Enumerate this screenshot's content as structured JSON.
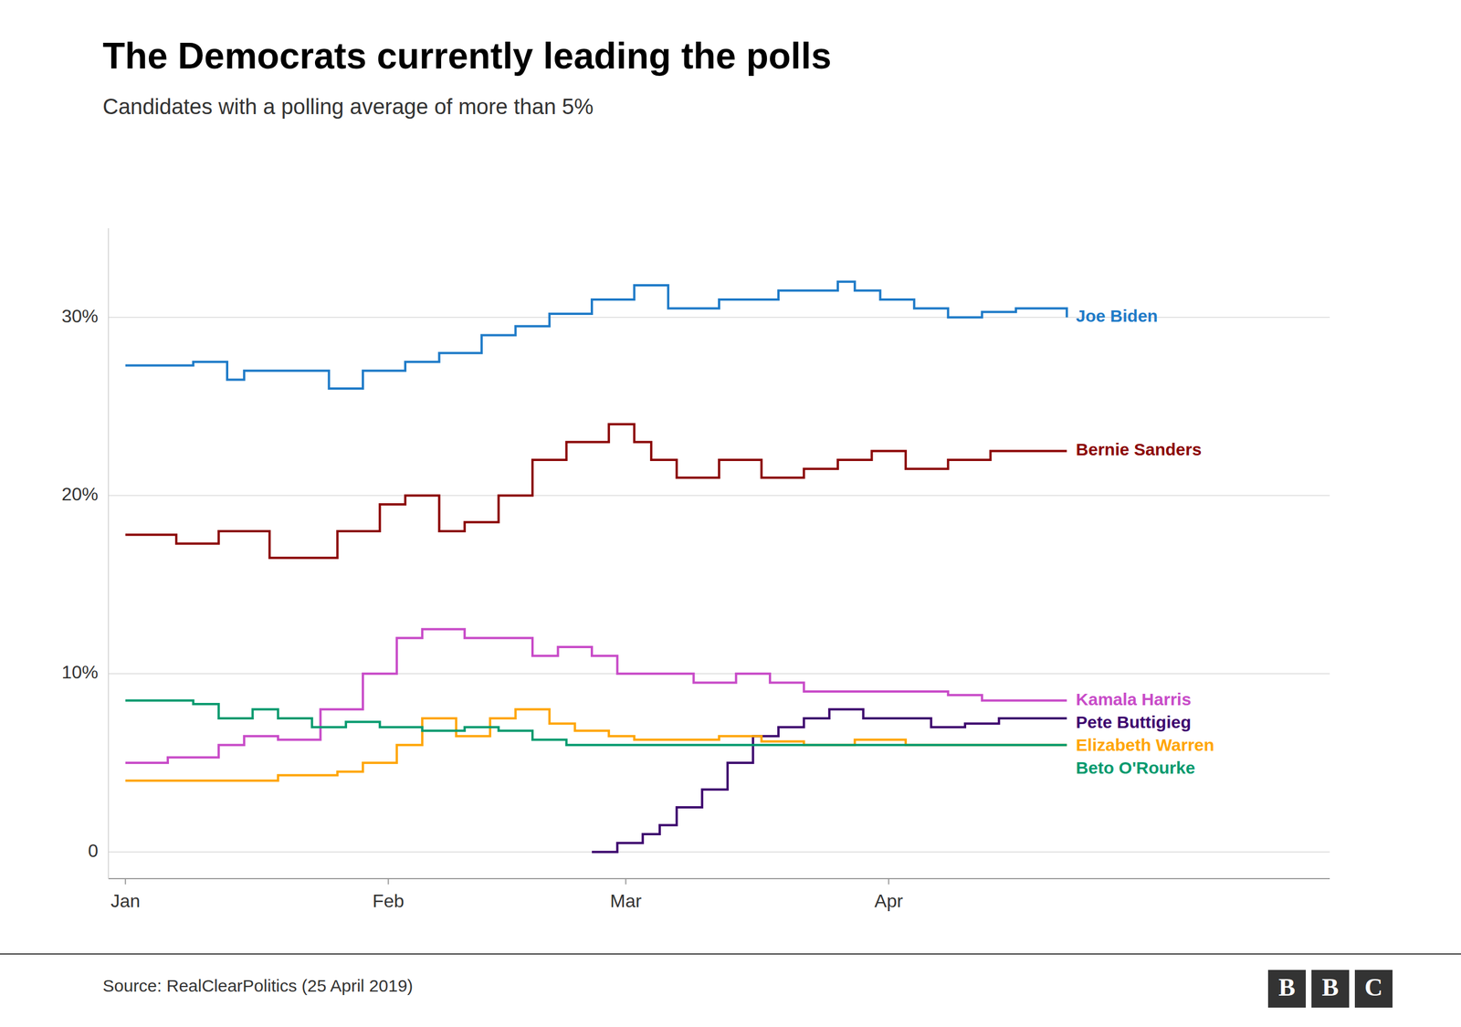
{
  "chart_data": {
    "type": "step",
    "title": "The Democrats currently leading the polls",
    "subtitle": "Candidates with a polling average of more than 5%",
    "source": "Source: RealClearPolitics (25 April 2019)",
    "logo": "BBC",
    "series": [
      {
        "name": "Joe Biden",
        "color": "#1f7bc8",
        "x": [
          0,
          8,
          12,
          14,
          19,
          24,
          28,
          33,
          37,
          42,
          46,
          50,
          55,
          60,
          64,
          70,
          77,
          84,
          86,
          89,
          93,
          97,
          101,
          105,
          111
        ],
        "values": [
          27.3,
          27.5,
          26.5,
          27.0,
          27.0,
          26.0,
          27.0,
          27.5,
          28.0,
          29.0,
          29.5,
          30.2,
          31.0,
          31.8,
          30.5,
          31.0,
          31.5,
          32.0,
          31.5,
          31.0,
          30.5,
          30.0,
          30.3,
          30.5,
          30.0
        ]
      },
      {
        "name": "Bernie Sanders",
        "color": "#8b0000",
        "x": [
          0,
          6,
          11,
          17,
          25,
          30,
          33,
          37,
          40,
          44,
          48,
          52,
          57,
          60,
          62,
          65,
          70,
          75,
          80,
          84,
          88,
          92,
          97,
          102,
          111
        ],
        "values": [
          17.8,
          17.3,
          18.0,
          16.5,
          18.0,
          19.5,
          20.0,
          18.0,
          18.5,
          20.0,
          22.0,
          23.0,
          24.0,
          23.0,
          22.0,
          21.0,
          22.0,
          21.0,
          21.5,
          22.0,
          22.5,
          21.5,
          22.0,
          22.5,
          22.5
        ]
      },
      {
        "name": "Kamala Harris",
        "color": "#c84bc8",
        "x": [
          0,
          5,
          11,
          14,
          18,
          23,
          28,
          32,
          35,
          40,
          44,
          48,
          51,
          55,
          58,
          62,
          67,
          72,
          76,
          80,
          84,
          88,
          93,
          97,
          101,
          105,
          111
        ],
        "values": [
          5.0,
          5.3,
          6.0,
          6.5,
          6.3,
          8.0,
          10.0,
          12.0,
          12.5,
          12.0,
          12.0,
          11.0,
          11.5,
          11.0,
          10.0,
          10.0,
          9.5,
          10.0,
          9.5,
          9.0,
          9.0,
          9.0,
          9.0,
          8.8,
          8.5,
          8.5,
          8.5
        ]
      },
      {
        "name": "Pete Buttigieg",
        "color": "#3d006e",
        "x": [
          55,
          58,
          61,
          63,
          65,
          68,
          71,
          74,
          77,
          80,
          83,
          87,
          91,
          95,
          99,
          103,
          107,
          111
        ],
        "values": [
          0.0,
          0.5,
          1.0,
          1.5,
          2.5,
          3.5,
          5.0,
          6.5,
          7.0,
          7.5,
          8.0,
          7.5,
          7.5,
          7.0,
          7.2,
          7.5,
          7.5,
          7.5
        ]
      },
      {
        "name": "Elizabeth Warren",
        "color": "#ffa500",
        "x": [
          0,
          18,
          25,
          28,
          32,
          35,
          39,
          43,
          46,
          50,
          53,
          57,
          60,
          65,
          70,
          75,
          80,
          86,
          92,
          97,
          102,
          111
        ],
        "values": [
          4.0,
          4.3,
          4.5,
          5.0,
          6.0,
          7.5,
          6.5,
          7.5,
          8.0,
          7.2,
          6.8,
          6.5,
          6.3,
          6.3,
          6.5,
          6.2,
          6.0,
          6.3,
          6.0,
          6.0,
          6.0,
          6.0
        ]
      },
      {
        "name": "Beto O'Rourke",
        "color": "#009a6e",
        "x": [
          0,
          8,
          11,
          15,
          18,
          22,
          26,
          30,
          35,
          40,
          44,
          48,
          52,
          57,
          62,
          70,
          80,
          90,
          111
        ],
        "values": [
          8.5,
          8.3,
          7.5,
          8.0,
          7.5,
          7.0,
          7.3,
          7.0,
          6.8,
          7.0,
          6.8,
          6.3,
          6.0,
          6.0,
          6.0,
          6.0,
          6.0,
          6.0,
          6.0
        ]
      }
    ],
    "xlim": [
      -2,
      142
    ],
    "xticks": [
      {
        "value": 0,
        "label": "Jan"
      },
      {
        "value": 31,
        "label": "Feb"
      },
      {
        "value": 59,
        "label": "Mar"
      },
      {
        "value": 90,
        "label": "Apr"
      }
    ],
    "ylim": [
      -1.5,
      35
    ],
    "yticks": [
      0,
      {
        "value": 10,
        "label": "10%"
      },
      {
        "value": 20,
        "label": "20%"
      },
      {
        "value": 30,
        "label": "30%"
      }
    ],
    "grid": true
  }
}
